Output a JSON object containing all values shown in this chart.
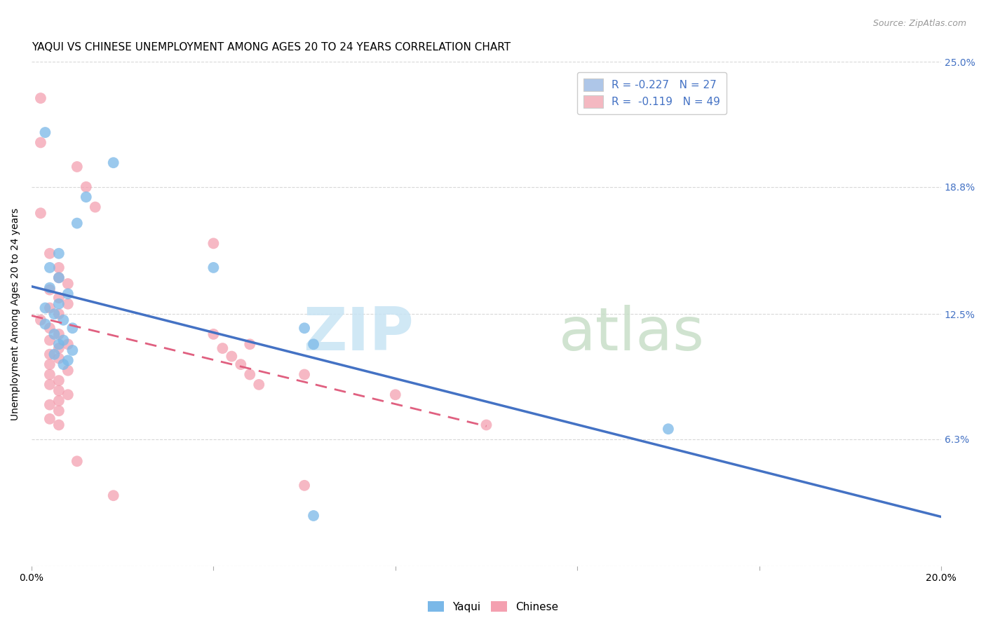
{
  "title": "YAQUI VS CHINESE UNEMPLOYMENT AMONG AGES 20 TO 24 YEARS CORRELATION CHART",
  "source": "Source: ZipAtlas.com",
  "ylabel": "Unemployment Among Ages 20 to 24 years",
  "xlim": [
    0.0,
    0.2
  ],
  "ylim": [
    0.0,
    0.25
  ],
  "xticks": [
    0.0,
    0.04,
    0.08,
    0.12,
    0.16,
    0.2
  ],
  "xticklabels": [
    "0.0%",
    "",
    "",
    "",
    "",
    "20.0%"
  ],
  "ytick_positions": [
    0.0,
    0.063,
    0.125,
    0.188,
    0.25
  ],
  "yticklabels_right": [
    "",
    "6.3%",
    "12.5%",
    "18.8%",
    "25.0%"
  ],
  "yaqui_color": "#7ab8e8",
  "chinese_color": "#f4a0b0",
  "yaqui_scatter": [
    [
      0.003,
      0.215
    ],
    [
      0.018,
      0.2
    ],
    [
      0.012,
      0.183
    ],
    [
      0.01,
      0.17
    ],
    [
      0.006,
      0.155
    ],
    [
      0.004,
      0.148
    ],
    [
      0.006,
      0.143
    ],
    [
      0.004,
      0.138
    ],
    [
      0.008,
      0.135
    ],
    [
      0.006,
      0.13
    ],
    [
      0.003,
      0.128
    ],
    [
      0.005,
      0.125
    ],
    [
      0.007,
      0.122
    ],
    [
      0.003,
      0.12
    ],
    [
      0.009,
      0.118
    ],
    [
      0.005,
      0.115
    ],
    [
      0.007,
      0.112
    ],
    [
      0.006,
      0.11
    ],
    [
      0.009,
      0.107
    ],
    [
      0.005,
      0.105
    ],
    [
      0.008,
      0.102
    ],
    [
      0.007,
      0.1
    ],
    [
      0.04,
      0.148
    ],
    [
      0.06,
      0.118
    ],
    [
      0.062,
      0.11
    ],
    [
      0.062,
      0.025
    ],
    [
      0.14,
      0.068
    ]
  ],
  "chinese_scatter": [
    [
      0.002,
      0.232
    ],
    [
      0.002,
      0.21
    ],
    [
      0.01,
      0.198
    ],
    [
      0.012,
      0.188
    ],
    [
      0.014,
      0.178
    ],
    [
      0.002,
      0.175
    ],
    [
      0.04,
      0.16
    ],
    [
      0.004,
      0.155
    ],
    [
      0.006,
      0.148
    ],
    [
      0.006,
      0.143
    ],
    [
      0.008,
      0.14
    ],
    [
      0.004,
      0.137
    ],
    [
      0.006,
      0.133
    ],
    [
      0.008,
      0.13
    ],
    [
      0.004,
      0.128
    ],
    [
      0.006,
      0.125
    ],
    [
      0.002,
      0.122
    ],
    [
      0.004,
      0.118
    ],
    [
      0.006,
      0.115
    ],
    [
      0.004,
      0.112
    ],
    [
      0.008,
      0.11
    ],
    [
      0.006,
      0.108
    ],
    [
      0.004,
      0.105
    ],
    [
      0.006,
      0.103
    ],
    [
      0.004,
      0.1
    ],
    [
      0.008,
      0.097
    ],
    [
      0.004,
      0.095
    ],
    [
      0.006,
      0.092
    ],
    [
      0.004,
      0.09
    ],
    [
      0.006,
      0.087
    ],
    [
      0.008,
      0.085
    ],
    [
      0.006,
      0.082
    ],
    [
      0.004,
      0.08
    ],
    [
      0.006,
      0.077
    ],
    [
      0.004,
      0.073
    ],
    [
      0.006,
      0.07
    ],
    [
      0.04,
      0.115
    ],
    [
      0.042,
      0.108
    ],
    [
      0.044,
      0.104
    ],
    [
      0.046,
      0.1
    ],
    [
      0.048,
      0.11
    ],
    [
      0.048,
      0.095
    ],
    [
      0.05,
      0.09
    ],
    [
      0.06,
      0.095
    ],
    [
      0.06,
      0.04
    ],
    [
      0.08,
      0.085
    ],
    [
      0.1,
      0.07
    ],
    [
      0.01,
      0.052
    ],
    [
      0.018,
      0.035
    ]
  ],
  "background_color": "#ffffff",
  "grid_color": "#d8d8d8",
  "title_fontsize": 11,
  "axis_label_fontsize": 10,
  "tick_fontsize": 10,
  "legend_box_color_yaqui": "#aec6e8",
  "legend_box_color_chinese": "#f4b8c1",
  "legend_text_color": "#4472c4",
  "right_tick_color": "#4472c4"
}
